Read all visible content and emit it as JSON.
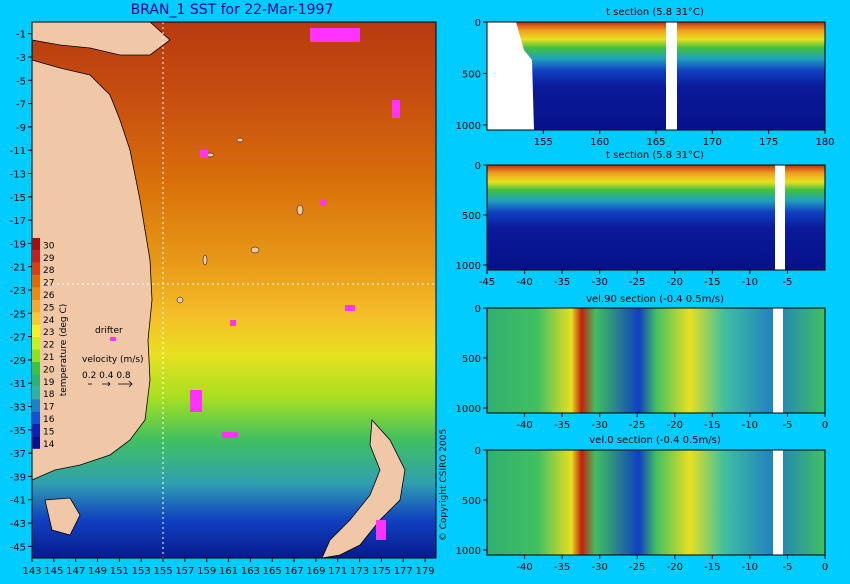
{
  "main_title": "BRAN_1 SST for 22-Mar-1997",
  "copyright": "© Copyright CSIRO 2005",
  "colorbar": {
    "label": "temperature (deg C)",
    "ticks": [
      "30",
      "29",
      "28",
      "27",
      "26",
      "25",
      "24",
      "23",
      "22",
      "21",
      "20",
      "19",
      "18",
      "17",
      "16",
      "15",
      "14"
    ],
    "colors": [
      "#a01010",
      "#c02020",
      "#d94010",
      "#e06a00",
      "#ea8a10",
      "#f4a830",
      "#fac830",
      "#f8f020",
      "#c8f020",
      "#90e020",
      "#40c040",
      "#30b070",
      "#30b0a0",
      "#2080c0",
      "#1850d0",
      "#1020b0",
      "#08108a"
    ]
  },
  "legend": {
    "drifter_label": "drifter",
    "velocity_label": "velocity (m/s)",
    "velocity_values": "0.2 0.4 0.8"
  },
  "chart_data": [
    {
      "type": "heatmap",
      "title": "BRAN_1 SST for 22-Mar-1997",
      "x_ticks": [
        "143",
        "145",
        "147",
        "149",
        "151",
        "153",
        "155",
        "157",
        "159",
        "161",
        "163",
        "165",
        "167",
        "169",
        "171",
        "173",
        "175",
        "177",
        "179"
      ],
      "y_ticks": [
        "-1",
        "-3",
        "-5",
        "-7",
        "-9",
        "-11",
        "-13",
        "-15",
        "-17",
        "-19",
        "-21",
        "-23",
        "-25",
        "-27",
        "-29",
        "-31",
        "-33",
        "-35",
        "-37",
        "-39",
        "-41",
        "-43",
        "-45"
      ],
      "xlim": [
        143,
        180
      ],
      "ylim": [
        -46,
        0
      ],
      "section_lines": {
        "longitude": 155,
        "latitude": -22
      }
    },
    {
      "type": "heatmap",
      "title": "t section (5.8      31°C)",
      "x_ticks": [
        "155",
        "160",
        "165",
        "170",
        "175",
        "180"
      ],
      "y_ticks": [
        "0",
        "500",
        "1000"
      ],
      "xlim": [
        150,
        180
      ],
      "ylim": [
        1050,
        0
      ]
    },
    {
      "type": "heatmap",
      "title": "t section (5.8      31°C)",
      "x_ticks": [
        "-45",
        "-40",
        "-35",
        "-30",
        "-25",
        "-20",
        "-15",
        "-10",
        "-5"
      ],
      "y_ticks": [
        "0",
        "500",
        "1000"
      ],
      "xlim": [
        -45,
        0
      ],
      "ylim": [
        1050,
        0
      ]
    },
    {
      "type": "heatmap",
      "title": "vel.90 section (-0.4      0.5m/s)",
      "x_ticks": [
        "-40",
        "-35",
        "-30",
        "-25",
        "-20",
        "-15",
        "-10",
        "-5",
        "0"
      ],
      "y_ticks": [
        "0",
        "500",
        "1000"
      ],
      "xlim": [
        -45,
        0
      ],
      "ylim": [
        1050,
        0
      ]
    },
    {
      "type": "heatmap",
      "title": "vel.0 section (-0.4      0.5m/s)",
      "x_ticks": [
        "-40",
        "-35",
        "-30",
        "-25",
        "-20",
        "-15",
        "-10",
        "-5",
        "0"
      ],
      "y_ticks": [
        "0",
        "500",
        "1000"
      ],
      "xlim": [
        -45,
        0
      ],
      "ylim": [
        1050,
        0
      ]
    }
  ]
}
